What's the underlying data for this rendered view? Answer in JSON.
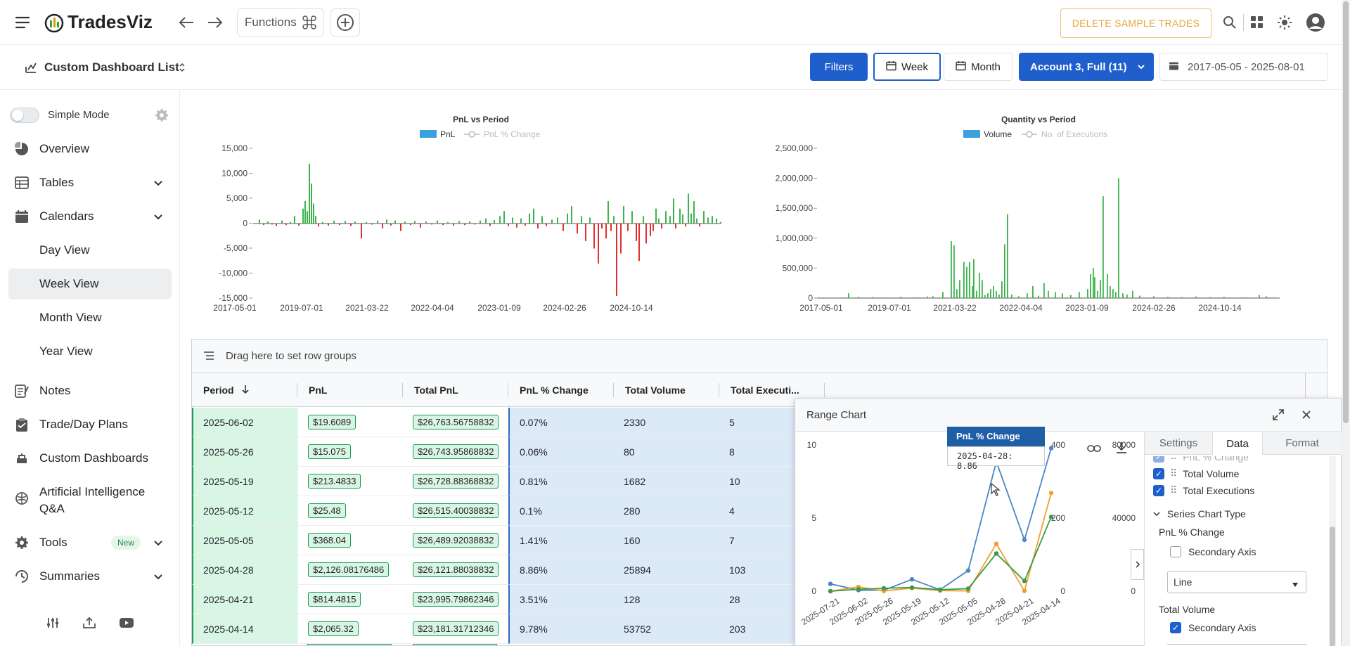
{
  "app": {
    "name": "TradesViz"
  },
  "topbar": {
    "functions_label": "Functions",
    "delete_label": "DELETE SAMPLE TRADES"
  },
  "subheader": {
    "dashboard_list": "Custom Dashboard List",
    "filters": "Filters",
    "week": "Week",
    "month": "Month",
    "account": "Account 3, Full (11)",
    "date_range": "2017-05-05 - 2025-08-01"
  },
  "sidebar": {
    "simple_mode": "Simple Mode",
    "items": [
      {
        "label": "Overview",
        "icon": "pie-chart-icon"
      },
      {
        "label": "Tables",
        "icon": "table-icon"
      },
      {
        "label": "Calendars",
        "icon": "calendar-icon"
      },
      {
        "label": "Day View"
      },
      {
        "label": "Week View"
      },
      {
        "label": "Month View"
      },
      {
        "label": "Year View"
      },
      {
        "label": "Notes",
        "icon": "notes-icon"
      },
      {
        "label": "Trade/Day Plans",
        "icon": "clipboard-icon"
      },
      {
        "label": "Custom Dashboards",
        "icon": "dashboard-icon"
      },
      {
        "label": "Artificial Intelligence",
        "label2": "Q&A",
        "icon": "ai-icon"
      },
      {
        "label": "Tools",
        "icon": "gear-icon",
        "badge": "New"
      },
      {
        "label": "Summaries",
        "icon": "summary-icon"
      }
    ]
  },
  "chart_data": [
    {
      "type": "bar",
      "title": "PnL vs Period",
      "legend": [
        "PnL",
        "PnL % Change"
      ],
      "ylim": [
        -15000,
        15000
      ],
      "yticks": [
        "15,000",
        "10,000",
        "5,000",
        "0",
        "-5,000",
        "-10,000",
        "-15,000"
      ],
      "xticks": [
        "2017-05-01",
        "2019-07-01",
        "2021-03-22",
        "2022-04-04",
        "2023-01-09",
        "2024-02-26",
        "2024-10-14"
      ],
      "colors": {
        "positive": "#3cb44b",
        "negative": "#e03131"
      }
    },
    {
      "type": "bar",
      "title": "Quantity vs Period",
      "legend": [
        "Volume",
        "No. of Executions"
      ],
      "ylim": [
        0,
        2500000
      ],
      "yticks": [
        "2,500,000",
        "2,000,000",
        "1,500,000",
        "1,000,000",
        "500,000",
        "0"
      ],
      "xticks": [
        "2017-05-01",
        "2019-07-01",
        "2021-03-22",
        "2022-04-04",
        "2023-01-09",
        "2024-02-26",
        "2024-10-14"
      ],
      "colors": {
        "bar": "#3cb44b"
      }
    },
    {
      "type": "line",
      "title": "Range Chart",
      "categories": [
        "2025-07-21",
        "2025-06-02",
        "2025-05-26",
        "2025-05-19",
        "2025-05-12",
        "2025-05-05",
        "2025-04-28",
        "2025-04-21",
        "2025-04-14"
      ],
      "left_ticks": [
        "10",
        "5",
        "0"
      ],
      "mid_ticks": [
        "400",
        "200",
        "0"
      ],
      "right_ticks": [
        "80000",
        "40000",
        "0"
      ],
      "tooltip_title": "PnL % Change",
      "tooltip_value": "2025-04-28: 8.86",
      "series": [
        {
          "name": "PnL % Change",
          "color": "#4a86c8",
          "values": [
            0.5,
            0.07,
            0.06,
            0.81,
            0.1,
            1.41,
            8.86,
            3.51,
            9.78
          ]
        },
        {
          "name": "Total Volume",
          "color": "#f0a030",
          "values": [
            0,
            2330,
            80,
            1682,
            280,
            160,
            25894,
            128,
            53752
          ]
        },
        {
          "name": "Total Executions",
          "color": "#3a9a4a",
          "values": [
            0,
            5,
            8,
            10,
            4,
            7,
            103,
            28,
            203
          ]
        }
      ]
    }
  ],
  "grid": {
    "group_hint": "Drag here to set row groups",
    "columns": [
      "Period",
      "PnL",
      "Total PnL",
      "PnL % Change",
      "Total Volume",
      "Total Executi..."
    ],
    "rows": [
      {
        "period": "2025-06-02",
        "pnl": "$19.6089",
        "total": "$26,763.56758832",
        "pct": "0.07%",
        "vol": "2330",
        "exec": "5"
      },
      {
        "period": "2025-05-26",
        "pnl": "$15.075",
        "total": "$26,743.95868832",
        "pct": "0.06%",
        "vol": "80",
        "exec": "8"
      },
      {
        "period": "2025-05-19",
        "pnl": "$213.4833",
        "total": "$26,728.88368832",
        "pct": "0.81%",
        "vol": "1682",
        "exec": "10"
      },
      {
        "period": "2025-05-12",
        "pnl": "$25.48",
        "total": "$26,515.40038832",
        "pct": "0.1%",
        "vol": "280",
        "exec": "4"
      },
      {
        "period": "2025-05-05",
        "pnl": "$368.04",
        "total": "$26,489.92038832",
        "pct": "1.41%",
        "vol": "160",
        "exec": "7"
      },
      {
        "period": "2025-04-28",
        "pnl": "$2,126.08176486",
        "total": "$26,121.88038832",
        "pct": "8.86%",
        "vol": "25894",
        "exec": "103"
      },
      {
        "period": "2025-04-21",
        "pnl": "$814.4815",
        "total": "$23,995.79862346",
        "pct": "3.51%",
        "vol": "128",
        "exec": "28"
      },
      {
        "period": "2025-04-14",
        "pnl": "$2,065.32",
        "total": "$23,181.31712346",
        "pct": "9.78%",
        "vol": "53752",
        "exec": "203"
      }
    ]
  },
  "range_panel": {
    "title": "Range Chart",
    "tabs": [
      "Settings",
      "Data",
      "Format"
    ],
    "faded_item": "PnL % Change",
    "checked_series": [
      "Total Volume",
      "Total Executions"
    ],
    "section": "Series Chart Type",
    "sub1": "PnL % Change",
    "secondary_axis": "Secondary Axis",
    "select1": "Line",
    "sub2": "Total Volume",
    "secondary_axis2": "Secondary Axis"
  }
}
